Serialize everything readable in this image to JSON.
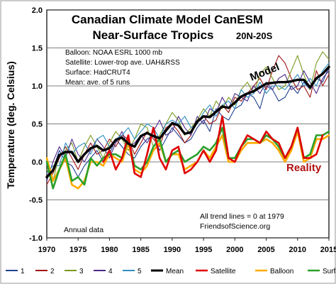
{
  "chart_data": {
    "type": "line",
    "title": "Canadian Climate Model CanESM",
    "subtitle_main": "Near-Surface Tropics",
    "subtitle_small": "20N-20S",
    "ylabel": "Temperature (deg. Celsius)",
    "xlabel": "",
    "xlim": [
      1970,
      2015
    ],
    "ylim": [
      -1.0,
      2.0
    ],
    "x_ticks": [
      1970,
      1975,
      1980,
      1985,
      1990,
      1995,
      2000,
      2005,
      2010,
      2015
    ],
    "y_ticks": [
      -1.0,
      -0.5,
      0.0,
      0.5,
      1.0,
      1.5,
      2.0
    ],
    "grid": true,
    "legend_position": "bottom",
    "info_lines": [
      "Balloon: NOAA ESRL 1000 mb",
      "Satellite: Lower-trop ave. UAH&RSS",
      "Surface: HadCRUT4",
      "Mean: ave. of 5 runs"
    ],
    "model_label": "Model",
    "reality_label": "Reality",
    "note_trend_1": "All trend lines = 0 at 1979",
    "note_trend_2": "FriendsofScience.org",
    "note_annual": "Annual data",
    "colors": {
      "run1": "#1f3f8f",
      "run2": "#a01515",
      "run3": "#7a9a1e",
      "run4": "#4b2a8a",
      "run5": "#2f8fbf",
      "mean": "#000000",
      "satellite": "#e00000",
      "balloon": "#ffaa00",
      "surface": "#2aa02a"
    },
    "series": [
      {
        "name": "1",
        "key": "run1",
        "width": 1.1,
        "x_start": 1970,
        "values": [
          -0.2,
          -0.1,
          0.15,
          0.0,
          -0.05,
          -0.2,
          -0.05,
          0.05,
          0.15,
          0.0,
          0.1,
          0.3,
          0.2,
          0.1,
          0.05,
          0.2,
          0.3,
          0.35,
          0.15,
          0.3,
          0.45,
          0.35,
          0.25,
          0.3,
          0.45,
          0.55,
          0.4,
          0.7,
          0.6,
          0.55,
          0.7,
          0.75,
          0.9,
          0.85,
          0.7,
          1.0,
          0.95,
          0.8,
          0.85,
          1.0,
          0.9,
          1.05,
          0.95,
          1.1,
          1.05,
          1.25
        ]
      },
      {
        "name": "2",
        "key": "run2",
        "width": 1.1,
        "x_start": 1970,
        "values": [
          -0.3,
          -0.15,
          0.05,
          0.2,
          0.05,
          -0.1,
          0.1,
          0.25,
          0.1,
          0.15,
          0.3,
          0.2,
          0.35,
          0.3,
          0.1,
          0.25,
          0.4,
          0.3,
          0.2,
          0.45,
          0.5,
          0.4,
          0.25,
          0.35,
          0.55,
          0.6,
          0.5,
          0.55,
          0.75,
          0.65,
          0.85,
          0.8,
          0.9,
          1.0,
          1.1,
          0.95,
          1.2,
          1.4,
          1.3,
          1.1,
          0.95,
          1.0,
          0.85,
          1.2,
          1.0,
          1.15
        ]
      },
      {
        "name": "3",
        "key": "run3",
        "width": 1.1,
        "x_start": 1970,
        "values": [
          -0.1,
          -0.25,
          0.1,
          0.15,
          0.25,
          0.0,
          0.2,
          0.35,
          0.2,
          0.05,
          0.25,
          0.4,
          0.3,
          0.15,
          0.3,
          0.5,
          0.45,
          0.2,
          0.35,
          0.5,
          0.65,
          0.55,
          0.35,
          0.45,
          0.55,
          0.7,
          0.6,
          0.8,
          0.7,
          0.85,
          0.75,
          0.95,
          1.05,
          0.9,
          1.15,
          1.25,
          1.1,
          0.95,
          1.0,
          1.2,
          1.4,
          1.15,
          0.95,
          1.3,
          1.45,
          1.35
        ]
      },
      {
        "name": "4",
        "key": "run4",
        "width": 1.1,
        "x_start": 1970,
        "values": [
          -0.25,
          0.0,
          0.2,
          0.05,
          0.3,
          0.1,
          0.0,
          0.15,
          0.3,
          0.2,
          0.05,
          0.25,
          0.4,
          0.2,
          0.25,
          0.35,
          0.25,
          0.4,
          0.55,
          0.35,
          0.4,
          0.6,
          0.45,
          0.35,
          0.6,
          0.5,
          0.7,
          0.65,
          0.85,
          0.7,
          0.9,
          0.85,
          0.8,
          1.0,
          0.9,
          1.05,
          0.95,
          1.1,
          1.15,
          0.95,
          1.0,
          1.2,
          1.05,
          0.9,
          1.1,
          1.2
        ]
      },
      {
        "name": "5",
        "key": "run5",
        "width": 1.1,
        "x_start": 1970,
        "values": [
          -0.15,
          -0.05,
          -0.05,
          0.25,
          0.1,
          0.2,
          0.25,
          0.1,
          0.3,
          0.35,
          0.2,
          0.3,
          0.35,
          0.45,
          0.3,
          0.4,
          0.5,
          0.45,
          0.3,
          0.5,
          0.55,
          0.5,
          0.6,
          0.45,
          0.5,
          0.65,
          0.75,
          0.6,
          0.75,
          0.8,
          0.7,
          0.95,
          0.85,
          0.9,
          1.05,
          0.9,
          1.0,
          1.0,
          0.95,
          1.05,
          1.15,
          1.0,
          1.1,
          1.0,
          1.2,
          1.3
        ]
      },
      {
        "name": "Mean",
        "key": "mean",
        "width": 3.4,
        "x_start": 1970,
        "values": [
          -0.2,
          -0.11,
          0.09,
          0.13,
          0.13,
          0.0,
          0.1,
          0.18,
          0.21,
          0.15,
          0.18,
          0.29,
          0.32,
          0.24,
          0.2,
          0.34,
          0.38,
          0.34,
          0.31,
          0.41,
          0.51,
          0.48,
          0.37,
          0.39,
          0.53,
          0.6,
          0.59,
          0.66,
          0.73,
          0.71,
          0.78,
          0.86,
          0.9,
          0.93,
          0.98,
          1.03,
          1.04,
          1.05,
          1.05,
          1.06,
          1.08,
          1.08,
          0.98,
          1.1,
          1.16,
          1.25
        ]
      },
      {
        "name": "Satellite",
        "key": "satellite",
        "width": 2.6,
        "x_start": 1979,
        "values": [
          0.0,
          0.15,
          -0.1,
          0.05,
          0.35,
          -0.15,
          -0.2,
          0.1,
          0.45,
          0.05,
          -0.1,
          0.15,
          0.2,
          -0.15,
          -0.1,
          0.0,
          0.15,
          0.0,
          0.15,
          0.6,
          0.05,
          0.0,
          0.2,
          0.35,
          0.3,
          0.25,
          0.4,
          0.3,
          0.25,
          0.05,
          0.2,
          0.45,
          0.05,
          0.05,
          0.1,
          0.35
        ]
      },
      {
        "name": "Balloon",
        "key": "balloon",
        "width": 2.6,
        "x_start": 1970,
        "values": [
          0.05,
          -0.25,
          -0.1,
          0.05,
          -0.3,
          -0.35,
          -0.25,
          0.0,
          0.0,
          -0.05,
          0.1,
          0.05,
          0.0,
          0.25,
          -0.1,
          -0.15,
          -0.05,
          0.15,
          0.25,
          0.0,
          0.1,
          0.1,
          -0.1,
          -0.05,
          0.0,
          0.15,
          0.05,
          0.2,
          0.35,
          0.0,
          0.0,
          0.15,
          0.25,
          0.25,
          0.25,
          0.3,
          0.25,
          0.15,
          0.0,
          0.15,
          0.4,
          0.0,
          0.05,
          0.3,
          0.3,
          0.35
        ]
      },
      {
        "name": "Surface",
        "key": "surface",
        "width": 2.6,
        "x_start": 1970,
        "values": [
          0.0,
          -0.35,
          -0.1,
          0.1,
          -0.25,
          -0.2,
          -0.3,
          0.05,
          -0.05,
          0.05,
          0.1,
          0.1,
          0.05,
          0.3,
          -0.05,
          -0.1,
          0.0,
          0.2,
          0.3,
          0.0,
          0.1,
          0.15,
          0.0,
          0.05,
          0.1,
          0.2,
          0.15,
          0.25,
          0.45,
          0.05,
          0.05,
          0.2,
          0.3,
          0.3,
          0.25,
          0.35,
          0.3,
          0.2,
          0.05,
          0.2,
          0.45,
          0.05,
          0.1,
          0.35,
          0.35,
          0.4
        ]
      }
    ]
  }
}
